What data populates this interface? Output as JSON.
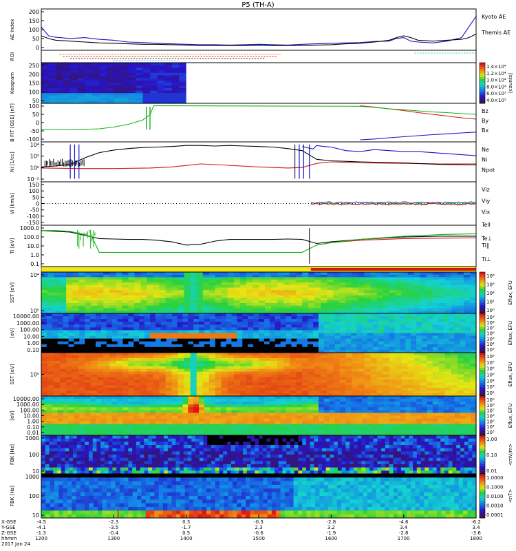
{
  "title": "P5 (TH-A)",
  "colors": {
    "black": "#000000",
    "blue": "#1414c8",
    "red": "#d21414",
    "green": "#14b414",
    "cyan": "#14c8c8",
    "orange": "#e07a14",
    "purple": "#3c1450",
    "yellow": "#f0e614"
  },
  "chart_data": [
    {
      "id": "ae",
      "type": "line",
      "ylabel": "AE Index",
      "yticks": [
        "200",
        "150",
        "100",
        "50",
        "0"
      ],
      "ylim": [
        0,
        210
      ],
      "series": [
        {
          "name": "Kyoto AE",
          "color": "#1414c8",
          "x": [
            1200,
            1210,
            1220,
            1240,
            1260,
            1280,
            1300,
            1320,
            1340,
            1360,
            1380,
            1400,
            1420,
            1440,
            1460,
            1480,
            1500,
            1520,
            1540,
            1560,
            1580,
            1600,
            1620,
            1640,
            1660,
            1680,
            1690,
            1700,
            1710,
            1720,
            1740,
            1760,
            1780,
            1790,
            1800
          ],
          "y": [
            120,
            70,
            62,
            55,
            60,
            50,
            45,
            35,
            32,
            28,
            25,
            22,
            20,
            20,
            18,
            20,
            22,
            20,
            18,
            22,
            25,
            28,
            30,
            32,
            38,
            40,
            55,
            60,
            40,
            35,
            30,
            40,
            60,
            120,
            180
          ]
        },
        {
          "name": "Themis AE",
          "color": "#000000",
          "x": [
            1200,
            1210,
            1220,
            1240,
            1260,
            1280,
            1300,
            1320,
            1340,
            1360,
            1380,
            1400,
            1420,
            1440,
            1460,
            1480,
            1500,
            1520,
            1540,
            1560,
            1580,
            1600,
            1620,
            1640,
            1660,
            1680,
            1690,
            1700,
            1710,
            1720,
            1740,
            1760,
            1780,
            1790,
            1800
          ],
          "y": [
            70,
            55,
            45,
            40,
            35,
            30,
            28,
            25,
            22,
            22,
            20,
            18,
            16,
            16,
            15,
            15,
            16,
            15,
            15,
            16,
            18,
            20,
            25,
            28,
            35,
            45,
            60,
            70,
            60,
            45,
            40,
            45,
            50,
            60,
            80
          ]
        }
      ]
    },
    {
      "id": "roi",
      "type": "other",
      "ylabel": "ROI"
    },
    {
      "id": "keogram",
      "type": "heatmap",
      "ylabel": "Keogram",
      "yticks": [
        "250",
        "200",
        "150",
        "100",
        "50"
      ],
      "colorbar": {
        "label": "[counts]",
        "ticks": [
          "1.4×10⁴",
          "1.2×10⁴",
          "1.0×10⁴",
          "8.0×10³",
          "6.0×10³",
          "4.0×10³"
        ]
      }
    },
    {
      "id": "bfit",
      "type": "line",
      "ylabel": "B FIT [GSE] [nT]",
      "yticks": [
        "100",
        "50",
        "0",
        "-50",
        "-100"
      ],
      "ylim": [
        -100,
        100
      ],
      "series": [
        {
          "name": "Bz",
          "color": "#d21414",
          "x": [
            1640,
            1660,
            1680,
            1700,
            1720,
            1740,
            1760,
            1780,
            1800
          ],
          "y": [
            98,
            90,
            80,
            70,
            58,
            48,
            38,
            28,
            20
          ]
        },
        {
          "name": "By",
          "color": "#14b414",
          "x": [
            1200,
            1240,
            1280,
            1300,
            1320,
            1340,
            1350,
            1355,
            1640,
            1660,
            1680,
            1700,
            1720,
            1740,
            1760,
            1780,
            1800
          ],
          "y": [
            -40,
            -42,
            -36,
            -26,
            -10,
            15,
            45,
            98,
            95,
            88,
            80,
            75,
            68,
            62,
            58,
            52,
            48
          ]
        },
        {
          "name": "Bx",
          "color": "#1414c8",
          "x": [
            1640,
            1660,
            1680,
            1700,
            1720,
            1740,
            1760,
            1780,
            1800
          ],
          "y": [
            -100,
            -95,
            -88,
            -82,
            -76,
            -70,
            -65,
            -60,
            -55
          ]
        }
      ]
    },
    {
      "id": "ni",
      "type": "line",
      "ylabel": "Ni [1/cc]",
      "yticks": [
        "10⁴",
        "10²",
        "10⁰",
        "10⁻²"
      ],
      "ylim": [
        -2.5,
        4.5
      ],
      "series": [
        {
          "name": "Ne",
          "color": "#d21414",
          "x": [
            1200,
            1250,
            1300,
            1350,
            1380,
            1400,
            1420,
            1450,
            1500,
            1540,
            1560,
            1580,
            1600,
            1640,
            1700,
            1750,
            1800
          ],
          "y": [
            -0.2,
            -0.3,
            -0.3,
            -0.2,
            0,
            0.3,
            0.6,
            0.4,
            0,
            -0.2,
            -0.1,
            0.7,
            1.0,
            0.8,
            0.7,
            0.6,
            0.6
          ]
        },
        {
          "name": "Ni",
          "color": "#000000",
          "x": [
            1200,
            1220,
            1240,
            1260,
            1280,
            1300,
            1320,
            1340,
            1360,
            1380,
            1400,
            1420,
            1440,
            1460,
            1480,
            1500,
            1520,
            1540,
            1560,
            1580,
            1600,
            1640,
            1700,
            1750,
            1800
          ],
          "y": [
            0,
            0.2,
            0.5,
            1.8,
            2.8,
            3.3,
            3.6,
            3.8,
            3.9,
            4.0,
            4.2,
            4.2,
            4.1,
            4.2,
            4.1,
            4.0,
            3.9,
            3.6,
            3.2,
            1.5,
            1.2,
            1.0,
            0.8,
            0.5,
            0.4
          ]
        },
        {
          "name": "Npot",
          "color": "#1414c8",
          "x": [
            1560,
            1575,
            1580,
            1590,
            1600,
            1620,
            1640,
            1660,
            1680,
            1700,
            1720,
            1740,
            1760,
            1780,
            1800
          ],
          "y": [
            4.0,
            3.5,
            4.2,
            4.0,
            3.9,
            3.2,
            3.0,
            3.4,
            3.2,
            3.0,
            3.0,
            2.8,
            2.6,
            2.4,
            2.2
          ]
        }
      ]
    },
    {
      "id": "vi",
      "type": "line",
      "ylabel": "Vi [km/s]",
      "yticks": [
        "150",
        "100",
        "50",
        "0",
        "-50",
        "-100",
        "-150"
      ],
      "ylim": [
        -170,
        170
      ],
      "series": [
        {
          "name": "Viz",
          "color": "#d21414"
        },
        {
          "name": "Viy",
          "color": "#14b414"
        },
        {
          "name": "Vix",
          "color": "#1414c8"
        }
      ]
    },
    {
      "id": "ti",
      "type": "line",
      "ylabel": "Ti [eV]",
      "yticks": [
        "1000.0",
        "100.0",
        "10.0",
        "1.0",
        "0.1"
      ],
      "ylim": [
        -1.2,
        3.4
      ],
      "series": [
        {
          "name": "Tell",
          "color": "#000000",
          "x": [
            1200,
            1220,
            1240,
            1260,
            1280,
            1300,
            1320,
            1340,
            1360,
            1380,
            1400,
            1420,
            1440,
            1460,
            1480,
            1500,
            1520,
            1540,
            1560,
            1580,
            1600,
            1640,
            1700,
            1750,
            1800
          ],
          "y": [
            3.0,
            2.9,
            2.8,
            2.4,
            2.0,
            1.95,
            1.9,
            1.9,
            1.8,
            1.6,
            1.2,
            1.3,
            1.7,
            1.9,
            1.9,
            1.9,
            1.9,
            1.95,
            1.9,
            1.4,
            1.6,
            1.9,
            2.2,
            2.3,
            2.3
          ]
        },
        {
          "name": "Te⊥",
          "color": "#d21414",
          "x": [
            1580,
            1600,
            1640,
            1700,
            1750,
            1800
          ],
          "y": [
            1.2,
            1.5,
            1.8,
            2.0,
            2.05,
            2.1
          ]
        },
        {
          "name": "Ti∥",
          "color": "#14b414",
          "x": [
            1200,
            1220,
            1240,
            1260,
            1270,
            1280,
            1320,
            1400,
            1500,
            1560,
            1580,
            1600,
            1640,
            1700,
            1750,
            1800
          ],
          "y": [
            3.0,
            3.0,
            2.9,
            2.5,
            2.2,
            0.3,
            0.3,
            0.3,
            0.3,
            0.3,
            1.2,
            1.5,
            1.9,
            2.3,
            2.5,
            2.6
          ]
        },
        {
          "name": "Ti⊥",
          "color": "#1414c8"
        }
      ]
    },
    {
      "id": "sst1",
      "type": "heatmap",
      "ylabel": "SST [eV]",
      "yticks": [
        "10⁴",
        "10⁵"
      ],
      "colorbar": {
        "label": "Eflux, EFU",
        "ticks": [
          "10⁸",
          "10⁶",
          "10⁴",
          "10²",
          "10⁰"
        ]
      }
    },
    {
      "id": "esa1",
      "type": "heatmap",
      "ylabel": "[eV]",
      "yticks": [
        "10000.00",
        "1000.00",
        "100.00",
        "10.00",
        "1.00",
        "0.10"
      ],
      "colorbar": {
        "label": "Eflux, EFU",
        "ticks": [
          "10⁹",
          "10⁸",
          "10⁷",
          "10⁶",
          "10⁵",
          "10⁴",
          "10³"
        ]
      }
    },
    {
      "id": "sst2",
      "type": "heatmap",
      "ylabel": "SST [eV]",
      "yticks": [
        "10⁵"
      ],
      "colorbar": {
        "label": "Eflux, EFU",
        "ticks": [
          "10⁸",
          "10⁷",
          "10⁶",
          "10⁵",
          "10⁴",
          "10³",
          "10²"
        ]
      }
    },
    {
      "id": "esa2",
      "type": "heatmap",
      "ylabel": "[eV]",
      "yticks": [
        "10000.00",
        "1000.00",
        "100.00",
        "10.00",
        "1.00",
        "0.10",
        "0.01"
      ],
      "colorbar": {
        "label": "Eflux, EFU",
        "ticks": [
          "10⁹",
          "10⁸",
          "10⁷",
          "10⁶",
          "10⁵",
          "10⁴",
          "10³"
        ]
      }
    },
    {
      "id": "fbk1",
      "type": "heatmap",
      "ylabel": "FBK [Hz]",
      "yticks": [
        "1000",
        "100",
        "10"
      ],
      "colorbar": {
        "label": "<mV/m>",
        "ticks": [
          "1.00",
          "0.10",
          "0.01"
        ]
      }
    },
    {
      "id": "fbk2",
      "type": "heatmap",
      "ylabel": "FBK [Hz]",
      "yticks": [
        "1000",
        "100",
        "10"
      ],
      "colorbar": {
        "label": "<nT>",
        "ticks": [
          "1.0000",
          "0.1000",
          "0.0100",
          "0.0010",
          "0.0001"
        ]
      }
    }
  ],
  "side_labels": {
    "ae": [
      "Kyoto AE",
      "Themis AE"
    ],
    "bfit": [
      "Bz",
      "By",
      "Bx"
    ],
    "ni": [
      "Ne",
      "Ni",
      "Npot"
    ],
    "vi": [
      "Viz",
      "Viy",
      "Vix"
    ],
    "ti": [
      "Tell",
      "Te⊥",
      "Ti∥",
      "Ti⊥"
    ]
  },
  "footer": {
    "row_labels": [
      "X-GSE",
      "Y-GSE",
      "Z-GSE",
      "hhmm",
      "2017 Jan 24"
    ],
    "ticks": [
      {
        "t": 1200,
        "rows": [
          "-4.5",
          "-4.1",
          "-1.3",
          "1200"
        ]
      },
      {
        "t": 1300,
        "rows": [
          "-2.3",
          "-3.5",
          "-0.4",
          "1300"
        ]
      },
      {
        "t": 1400,
        "rows": [
          "0.3",
          "-1.7",
          "0.5",
          "1400"
        ]
      },
      {
        "t": 1500,
        "rows": [
          "-0.3",
          "2.3",
          "-0.6",
          "1500"
        ]
      },
      {
        "t": 1600,
        "rows": [
          "-2.8",
          "3.2",
          "-1.9",
          "1600"
        ]
      },
      {
        "t": 1700,
        "rows": [
          "-4.6",
          "3.4",
          "-2.8",
          "1700"
        ]
      },
      {
        "t": 1800,
        "rows": [
          "-6.2",
          "3.4",
          "-3.6",
          "1800"
        ]
      }
    ]
  }
}
